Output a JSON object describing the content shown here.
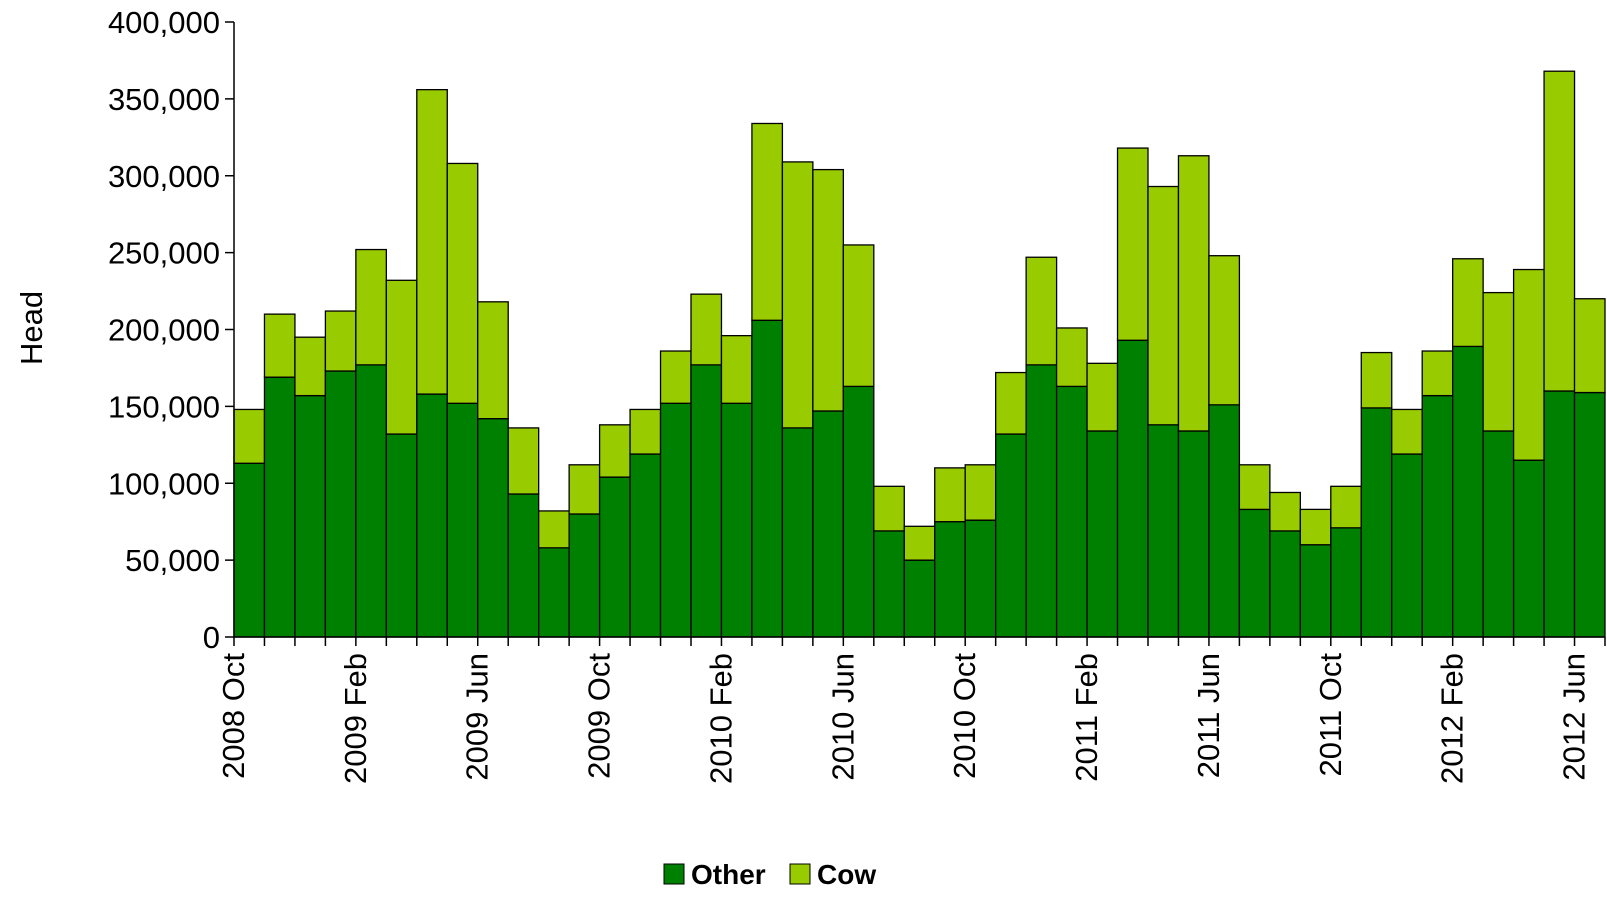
{
  "chart_data": {
    "type": "bar",
    "stacked": true,
    "title": "",
    "xlabel": "",
    "ylabel": "Head",
    "ylim": [
      0,
      400000
    ],
    "yticks": [
      "0",
      "50,000",
      "100,000",
      "150,000",
      "200,000",
      "250,000",
      "300,000",
      "350,000",
      "400,000"
    ],
    "ytick_values": [
      0,
      50000,
      100000,
      150000,
      200000,
      250000,
      300000,
      350000,
      400000
    ],
    "categories": [
      "2008 Oct",
      "2008 Nov",
      "2008 Dec",
      "2009 Jan",
      "2009 Feb",
      "2009 Mar",
      "2009 Apr",
      "2009 May",
      "2009 Jun",
      "2009 Jul",
      "2009 Aug",
      "2009 Sep",
      "2009 Oct",
      "2009 Nov",
      "2009 Dec",
      "2010 Jan",
      "2010 Feb",
      "2010 Mar",
      "2010 Apr",
      "2010 May",
      "2010 Jun",
      "2010 Jul",
      "2010 Aug",
      "2010 Sep",
      "2010 Oct",
      "2010 Nov",
      "2010 Dec",
      "2011 Jan",
      "2011 Feb",
      "2011 Mar",
      "2011 Apr",
      "2011 May",
      "2011 Jun",
      "2011 Jul",
      "2011 Aug",
      "2011 Sep",
      "2011 Oct",
      "2011 Nov",
      "2011 Dec",
      "2012 Jan",
      "2012 Feb",
      "2012 Mar",
      "2012 Apr",
      "2012 May",
      "2012 Jun"
    ],
    "xtick_labels": [
      {
        "index": 0,
        "label": "2008 Oct"
      },
      {
        "index": 4,
        "label": "2009 Feb"
      },
      {
        "index": 8,
        "label": "2009 Jun"
      },
      {
        "index": 12,
        "label": "2009 Oct"
      },
      {
        "index": 16,
        "label": "2010 Feb"
      },
      {
        "index": 20,
        "label": "2010 Jun"
      },
      {
        "index": 24,
        "label": "2010 Oct"
      },
      {
        "index": 28,
        "label": "2011 Feb"
      },
      {
        "index": 32,
        "label": "2011 Jun"
      },
      {
        "index": 36,
        "label": "2011 Oct"
      },
      {
        "index": 40,
        "label": "2012 Feb"
      },
      {
        "index": 44,
        "label": "2012 Jun"
      }
    ],
    "series": [
      {
        "name": "Other",
        "color": "#008000",
        "values": [
          113000,
          169000,
          157000,
          173000,
          177000,
          132000,
          158000,
          152000,
          142000,
          93000,
          58000,
          80000,
          104000,
          119000,
          152000,
          177000,
          152000,
          206000,
          136000,
          147000,
          163000,
          69000,
          50000,
          75000,
          76000,
          132000,
          177000,
          163000,
          134000,
          193000,
          138000,
          134000,
          151000,
          83000,
          69000,
          60000,
          71000,
          149000,
          119000,
          157000,
          189000,
          134000,
          115000,
          160000,
          159000
        ]
      },
      {
        "name": "Cow",
        "color": "#99CC00",
        "values": [
          35000,
          41000,
          38000,
          39000,
          75000,
          100000,
          198000,
          156000,
          76000,
          43000,
          24000,
          32000,
          34000,
          29000,
          34000,
          46000,
          44000,
          128000,
          173000,
          157000,
          92000,
          29000,
          22000,
          35000,
          36000,
          40000,
          70000,
          38000,
          44000,
          125000,
          155000,
          179000,
          97000,
          29000,
          25000,
          23000,
          27000,
          36000,
          29000,
          29000,
          57000,
          90000,
          124000,
          208000,
          61000
        ]
      }
    ],
    "legend": {
      "position": "bottom",
      "items": [
        "Other",
        "Cow"
      ]
    },
    "grid": false
  }
}
